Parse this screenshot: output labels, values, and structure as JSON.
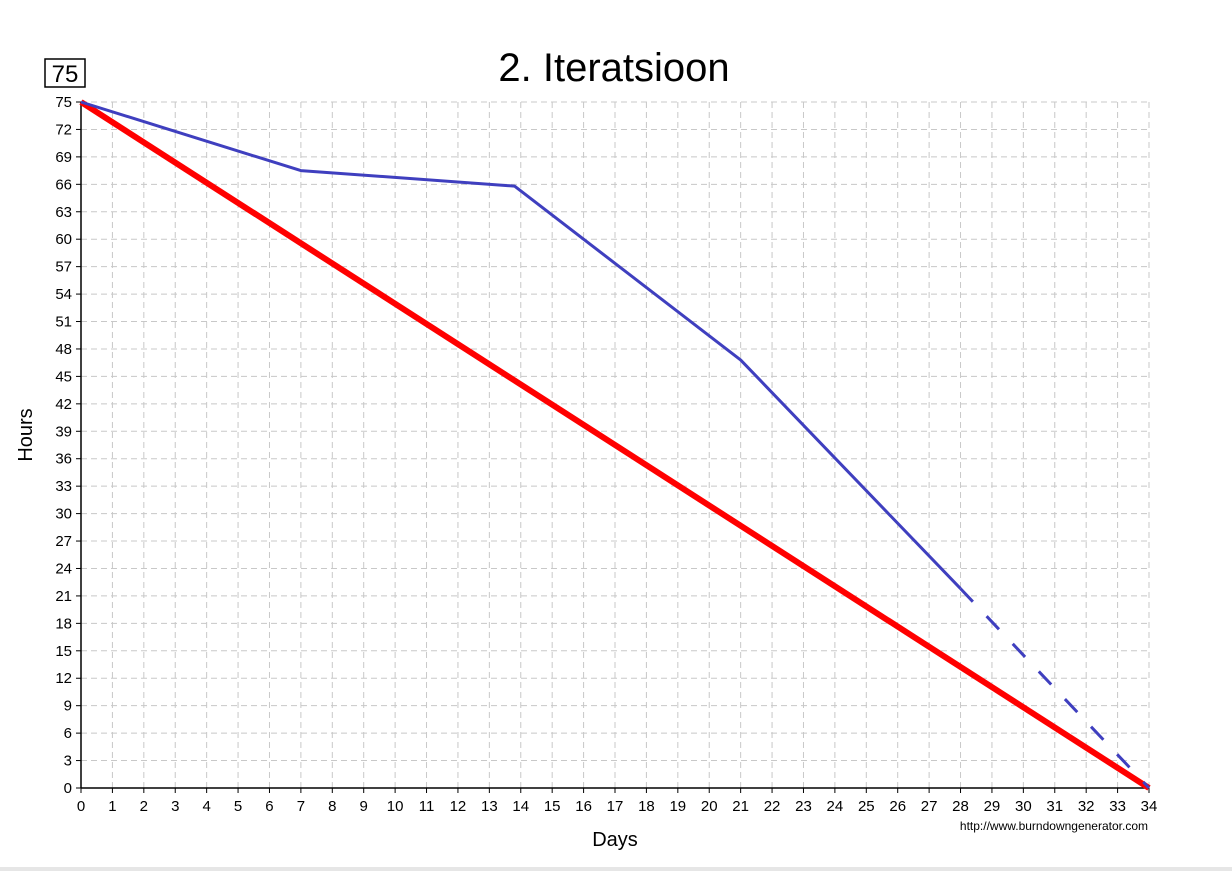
{
  "chart_data": {
    "type": "line",
    "title": "2. Iteratsioon",
    "xlabel": "Days",
    "ylabel": "Hours",
    "badge": "75",
    "credit": "http://www.burndowngenerator.com",
    "xlim": [
      0,
      34
    ],
    "ylim": [
      0,
      75
    ],
    "x_ticks": [
      0,
      1,
      2,
      3,
      4,
      5,
      6,
      7,
      8,
      9,
      10,
      11,
      12,
      13,
      14,
      15,
      16,
      17,
      18,
      19,
      20,
      21,
      22,
      23,
      24,
      25,
      26,
      27,
      28,
      29,
      30,
      31,
      32,
      33,
      34
    ],
    "y_ticks": [
      0,
      3,
      6,
      9,
      12,
      15,
      18,
      21,
      24,
      27,
      30,
      33,
      36,
      39,
      42,
      45,
      48,
      51,
      54,
      57,
      60,
      63,
      66,
      69,
      72,
      75
    ],
    "grid": true,
    "series": [
      {
        "name": "",
        "style": "ideal",
        "color": "#ff0000",
        "points": [
          [
            0,
            75
          ],
          [
            34,
            0
          ]
        ]
      },
      {
        "name": "",
        "style": "actual",
        "color": "#3f3fbf",
        "points": [
          [
            0,
            75
          ],
          [
            7,
            67.5
          ],
          [
            13.8,
            65.8
          ],
          [
            21,
            46.8
          ],
          [
            28,
            21.8
          ]
        ]
      },
      {
        "name": "",
        "style": "projected",
        "color": "#3f3fbf",
        "points": [
          [
            28,
            21.8
          ],
          [
            34,
            0
          ]
        ]
      }
    ]
  }
}
